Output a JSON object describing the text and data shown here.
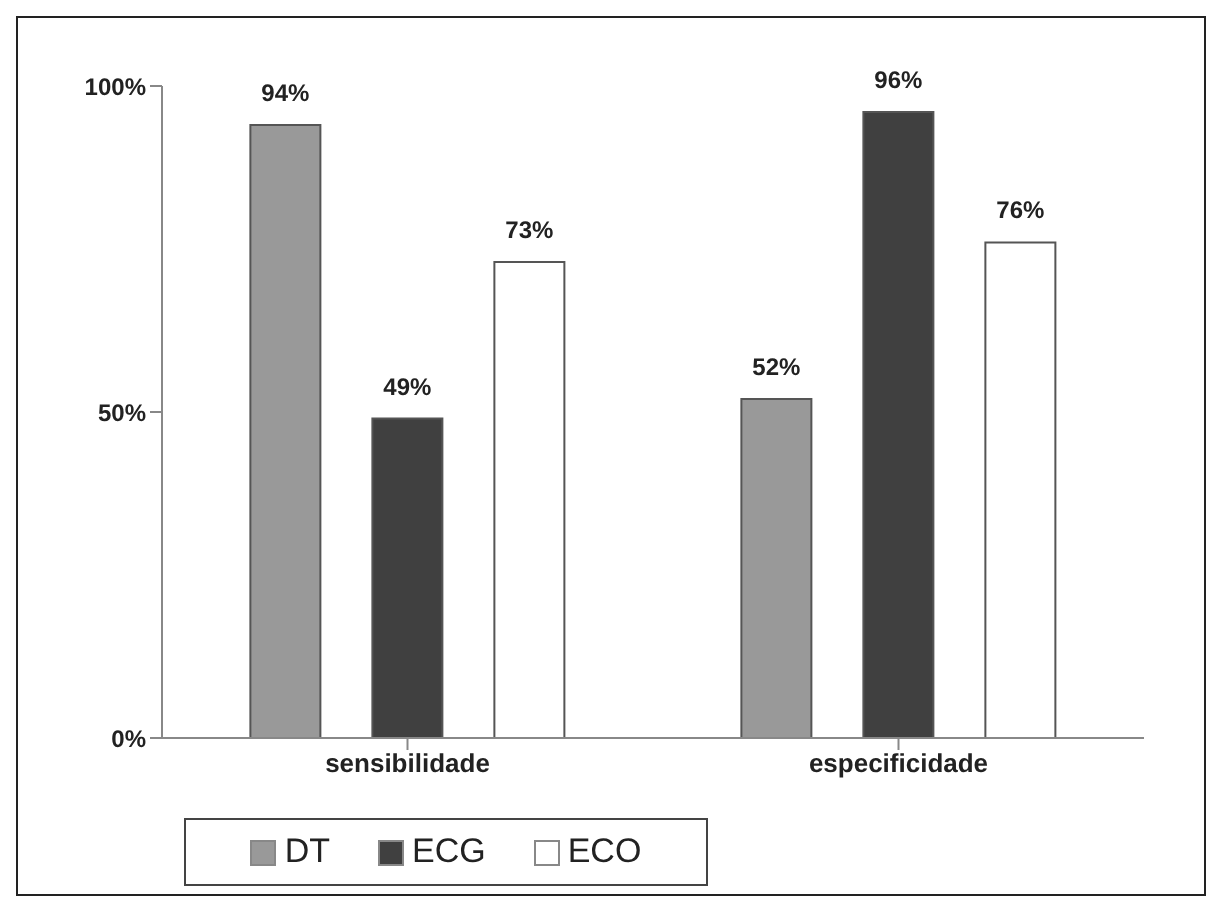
{
  "chart_data": {
    "type": "bar",
    "categories": [
      "sensibilidade",
      "especificidade"
    ],
    "series": [
      {
        "name": "DT",
        "color": "#999999",
        "values": [
          94,
          52
        ],
        "value_labels": [
          "94%",
          "52%"
        ]
      },
      {
        "name": "ECG",
        "color": "#404040",
        "values": [
          49,
          96
        ],
        "value_labels": [
          "49%",
          "96%"
        ]
      },
      {
        "name": "ECO",
        "color": "#ffffff",
        "values": [
          73,
          76
        ],
        "value_labels": [
          "73%",
          "76%"
        ]
      }
    ],
    "ylim": [
      0,
      100
    ],
    "yticks": [
      {
        "value": 0,
        "label": "0%"
      },
      {
        "value": 50,
        "label": "50%"
      },
      {
        "value": 100,
        "label": "100%"
      }
    ],
    "grid": false,
    "legend": "bottom left"
  }
}
